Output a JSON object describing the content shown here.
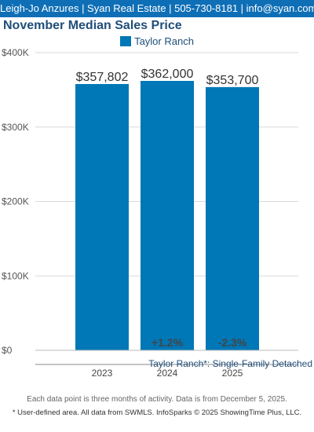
{
  "header": {
    "text": "Leigh-Jo Anzures | Syan Real Estate | 505-730-8181 | info@syan.com",
    "bg_color": "#0f6fb6"
  },
  "chart_data": {
    "type": "bar",
    "title": "November Median Sales Price",
    "categories": [
      "2023",
      "2024",
      "2025"
    ],
    "series": [
      {
        "name": "Taylor Ranch",
        "values": [
          357802,
          362000,
          353700
        ],
        "color": "#0077b6"
      }
    ],
    "value_labels": [
      "$357,802",
      "$362,000",
      "$353,700"
    ],
    "change_labels": [
      "",
      "+1.2%",
      "-2.3%"
    ],
    "yticks": [
      0,
      100000,
      200000,
      300000,
      400000
    ],
    "ytick_labels": [
      "$0",
      "$100K",
      "$200K",
      "$300K",
      "$400K"
    ],
    "ylim": [
      0,
      400000
    ],
    "grid": true,
    "legend_position": "top-center",
    "xlabel": "",
    "ylabel": ""
  },
  "footnotes": {
    "area": "Taylor Ranch*: Single-Family Detached",
    "data_note": "Each data point is three months of activity. Data is from December 5, 2025.",
    "source": "* User-defined area. All data from SWMLS. InfoSparks © 2025 ShowingTime Plus, LLC."
  }
}
